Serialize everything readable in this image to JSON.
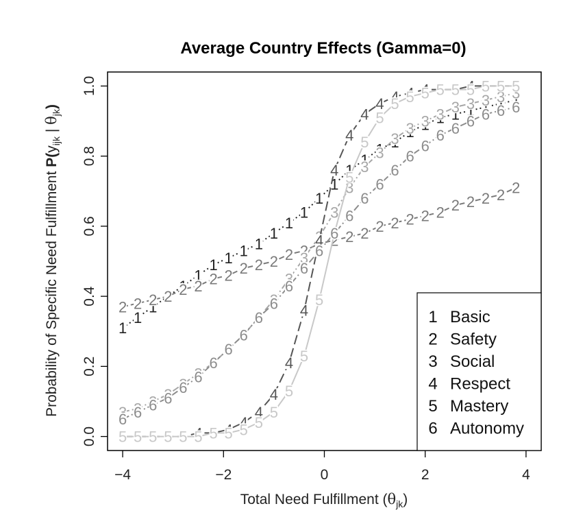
{
  "chart_data": {
    "type": "line",
    "title": "Average Country Effects (Gamma=0)",
    "xlabel_main": "Total Need Fulfillment (",
    "xlabel_theta": "θ",
    "xlabel_sub": "jk",
    "xlabel_close": ")",
    "ylabel_main": "Probability of Specific Need Fulfillment  ",
    "ylabel_P": "P(",
    "ylabel_y": "y",
    "ylabel_ysub": "ijk",
    "ylabel_bar": " | ",
    "ylabel_theta": "θ",
    "ylabel_tsub": "jk",
    "ylabel_close": ")",
    "xlim": [
      -4.3,
      4.3
    ],
    "ylim": [
      -0.04,
      1.04
    ],
    "x_ticks": [
      -4,
      -2,
      0,
      2,
      4
    ],
    "x_tick_labels": [
      "−4",
      "−2",
      "0",
      "2",
      "4"
    ],
    "y_ticks": [
      0.0,
      0.2,
      0.4,
      0.6,
      0.8,
      1.0
    ],
    "y_tick_labels": [
      "0.0",
      "0.2",
      "0.4",
      "0.6",
      "0.8",
      "1.0"
    ],
    "x": [
      -4.0,
      -3.7,
      -3.4,
      -3.1,
      -2.8,
      -2.5,
      -2.2,
      -1.9,
      -1.6,
      -1.3,
      -1.0,
      -0.7,
      -0.4,
      -0.1,
      0.2,
      0.5,
      0.8,
      1.1,
      1.4,
      1.7,
      2.0,
      2.3,
      2.6,
      2.9,
      3.2,
      3.5,
      3.8
    ],
    "series": [
      {
        "name": "Basic",
        "marker": "1",
        "color": "#222222",
        "dash": "2 4",
        "values": [
          0.31,
          0.34,
          0.37,
          0.4,
          0.43,
          0.46,
          0.49,
          0.51,
          0.53,
          0.55,
          0.58,
          0.61,
          0.64,
          0.68,
          0.72,
          0.76,
          0.79,
          0.82,
          0.84,
          0.87,
          0.89,
          0.91,
          0.92,
          0.93,
          0.94,
          0.95,
          0.96
        ]
      },
      {
        "name": "Safety",
        "marker": "2",
        "color": "#7a7a7a",
        "dash": "8 4",
        "values": [
          0.37,
          0.38,
          0.39,
          0.4,
          0.42,
          0.43,
          0.45,
          0.46,
          0.48,
          0.49,
          0.5,
          0.52,
          0.53,
          0.55,
          0.56,
          0.57,
          0.58,
          0.6,
          0.61,
          0.62,
          0.63,
          0.64,
          0.66,
          0.67,
          0.68,
          0.69,
          0.71
        ]
      },
      {
        "name": "Social",
        "marker": "3",
        "color": "#a6a6a6",
        "dash": "10 4 2 4",
        "values": [
          0.07,
          0.08,
          0.1,
          0.12,
          0.15,
          0.18,
          0.21,
          0.25,
          0.29,
          0.34,
          0.39,
          0.45,
          0.51,
          0.57,
          0.64,
          0.71,
          0.77,
          0.81,
          0.85,
          0.88,
          0.9,
          0.92,
          0.94,
          0.95,
          0.96,
          0.97,
          0.98
        ]
      },
      {
        "name": "Respect",
        "marker": "4",
        "color": "#555555",
        "dash": "14 6",
        "values": [
          0.0,
          0.0,
          0.0,
          0.0,
          0.0,
          0.01,
          0.01,
          0.02,
          0.04,
          0.07,
          0.12,
          0.21,
          0.36,
          0.56,
          0.76,
          0.86,
          0.92,
          0.95,
          0.97,
          0.98,
          0.99,
          0.99,
          0.99,
          1.0,
          1.0,
          1.0,
          1.0
        ]
      },
      {
        "name": "Mastery",
        "marker": "5",
        "color": "#c8c8c8",
        "dash": "",
        "values": [
          0.0,
          0.0,
          0.0,
          0.0,
          0.0,
          0.0,
          0.01,
          0.01,
          0.02,
          0.04,
          0.07,
          0.13,
          0.23,
          0.39,
          0.58,
          0.74,
          0.84,
          0.91,
          0.95,
          0.97,
          0.98,
          0.99,
          0.99,
          0.99,
          1.0,
          1.0,
          1.0
        ]
      },
      {
        "name": "Autonomy",
        "marker": "6",
        "color": "#8c8c8c",
        "dash": "10 4 2 4",
        "values": [
          0.05,
          0.07,
          0.09,
          0.11,
          0.14,
          0.17,
          0.21,
          0.25,
          0.29,
          0.34,
          0.38,
          0.43,
          0.48,
          0.53,
          0.58,
          0.63,
          0.68,
          0.72,
          0.76,
          0.8,
          0.83,
          0.86,
          0.88,
          0.9,
          0.92,
          0.93,
          0.94
        ]
      }
    ],
    "legend": {
      "placement": "bottom-right",
      "entries": [
        {
          "marker": "1",
          "label": "Basic"
        },
        {
          "marker": "2",
          "label": "Safety"
        },
        {
          "marker": "3",
          "label": "Social"
        },
        {
          "marker": "4",
          "label": "Respect"
        },
        {
          "marker": "5",
          "label": "Mastery"
        },
        {
          "marker": "6",
          "label": "Autonomy"
        }
      ]
    },
    "grid": false
  }
}
